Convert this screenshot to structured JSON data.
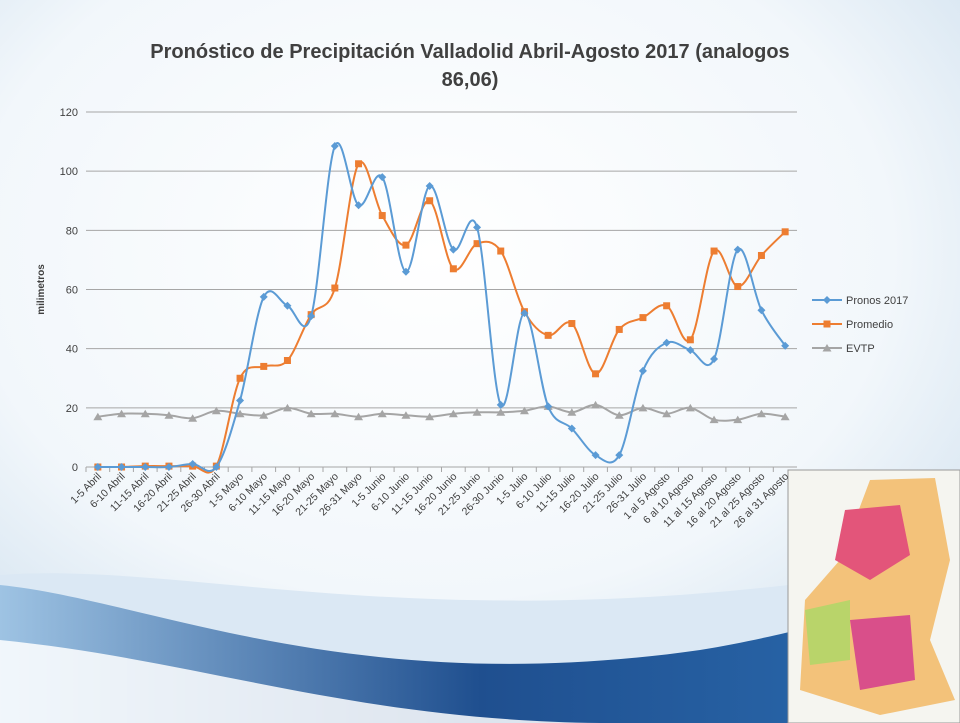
{
  "chart_data": {
    "type": "line",
    "title": "Pronóstico de Precipitación Valladolid Abril-Agosto 2017 (analogos 86,06)",
    "y_label": "milimetros",
    "categories": [
      "1-5 Abril",
      "6-10 Abril",
      "11-15 Abril",
      "16-20 Abril",
      "21-25 Abril",
      "26-30 Abril",
      "1-5 Mayo",
      "6-10 Mayo",
      "11-15 Mayo",
      "16-20 Mayo",
      "21-25 Mayo",
      "26-31 Mayo",
      "1-5 Junio",
      "6-10 Junio",
      "11-15 Junio",
      "16-20 Junio",
      "21-25 Junio",
      "26-30 Junio",
      "1-5 Julio",
      "6-10 Julio",
      "11-15 Julio",
      "16-20 Julio",
      "21-25 Julio",
      "26-31 Julio",
      "1 al 5 Agosto",
      "6 al 10 Agosto",
      "11 al 15 Agosto",
      "16 al 20 Agosto",
      "21 al 25 Agosto",
      "26 al 31 Agosto"
    ],
    "series": [
      {
        "name": "Pronos 2017",
        "color": "#5b9bd5",
        "marker": "diamond",
        "values": [
          0,
          0,
          0,
          0,
          1,
          0,
          22.5,
          57.5,
          54.5,
          51,
          108.5,
          88.5,
          98,
          66,
          95,
          73.5,
          81,
          21,
          52,
          20.5,
          13,
          4,
          4,
          32.5,
          42,
          39.5,
          36.5,
          73.5,
          53,
          41
        ]
      },
      {
        "name": "Promedio",
        "color": "#ed7d31",
        "marker": "square",
        "values": [
          0,
          0,
          0.3,
          0.3,
          0.3,
          0.3,
          30,
          34,
          36,
          51.5,
          60.5,
          102.5,
          85,
          75,
          90,
          67,
          75.5,
          73,
          52.5,
          44.5,
          48.5,
          31.5,
          46.5,
          50.5,
          54.5,
          43,
          73,
          61,
          71.5,
          79.5
        ]
      },
      {
        "name": "EVTP",
        "color": "#a5a5a5",
        "marker": "triangle",
        "values": [
          17,
          18,
          18,
          17.5,
          16.5,
          19,
          18,
          17.5,
          20,
          18,
          18,
          17,
          18,
          17.5,
          17,
          18,
          18.5,
          18.5,
          19,
          20.5,
          18.5,
          21,
          17.5,
          20,
          18,
          20,
          16,
          16,
          18,
          17
        ]
      }
    ],
    "ylim": [
      0,
      120
    ],
    "yticks": [
      0,
      20,
      40,
      60,
      80,
      100,
      120
    ],
    "grid": true,
    "smooth": true,
    "legend": "right"
  }
}
